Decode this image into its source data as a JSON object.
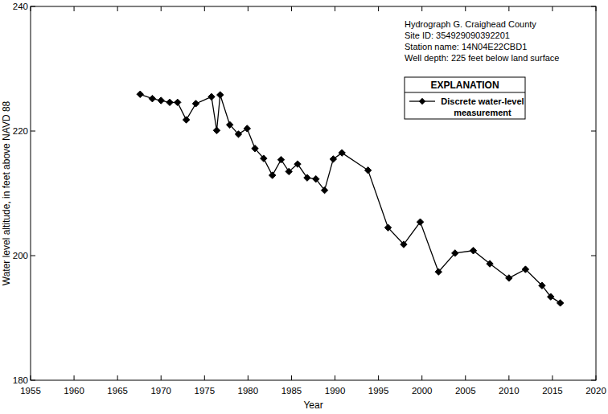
{
  "chart_data": {
    "type": "line",
    "title": "Hydrograph G. Craighead County",
    "annotations": [
      "Site ID: 354929090392201",
      "Station name: 14N04E22CBD1",
      "Well depth: 225 feet below land surface"
    ],
    "legend_title": "EXPLANATION",
    "x_label": "Year",
    "y_label": "Water level altitude, in feet above NAVD 88",
    "x": [
      1967.6,
      1969.0,
      1970.0,
      1971.0,
      1971.9,
      1972.9,
      1974.0,
      1975.8,
      1976.4,
      1976.8,
      1977.9,
      1978.9,
      1979.9,
      1980.8,
      1981.8,
      1982.8,
      1983.8,
      1984.7,
      1985.7,
      1986.8,
      1987.8,
      1988.8,
      1989.8,
      1990.8,
      1993.8,
      1996.1,
      1997.9,
      1999.8,
      2001.9,
      2003.8,
      2005.9,
      2007.8,
      2010.0,
      2011.9,
      2013.8,
      2014.8,
      2015.9
    ],
    "series": [
      {
        "name": "Discrete water-level measurement",
        "color": "#000000",
        "marker": "diamond",
        "line_style": "solid",
        "values": [
          225.9,
          225.2,
          224.9,
          224.6,
          224.6,
          221.8,
          224.4,
          225.5,
          220.1,
          225.8,
          221.0,
          219.5,
          220.4,
          217.2,
          215.6,
          212.9,
          215.4,
          213.5,
          214.7,
          212.5,
          212.3,
          210.5,
          215.5,
          216.5,
          213.7,
          204.5,
          201.8,
          205.4,
          197.4,
          200.4,
          200.8,
          198.7,
          196.4,
          197.8,
          195.2,
          193.4,
          192.4
        ]
      }
    ],
    "xlim": [
      1955,
      2020
    ],
    "xticks": [
      1955,
      1960,
      1965,
      1970,
      1975,
      1980,
      1985,
      1990,
      1995,
      2000,
      2005,
      2010,
      2015,
      2020
    ],
    "ylim": [
      180,
      240
    ],
    "yticks": [
      180,
      200,
      220,
      240
    ],
    "grid": false,
    "legend": "top-right"
  }
}
